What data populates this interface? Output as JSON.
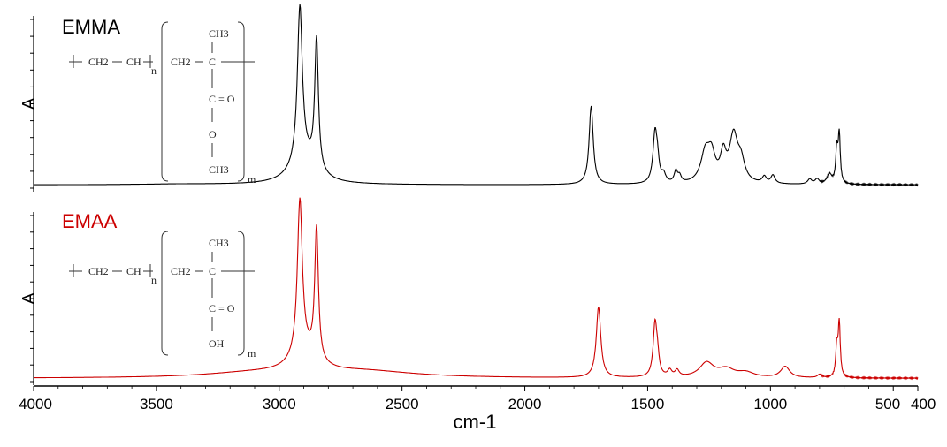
{
  "chart_data": {
    "type": "line",
    "xlabel": "cm-1",
    "ylabel": "A",
    "x_axis": {
      "min": 400,
      "max": 4000,
      "reversed": true,
      "ticks": [
        4000,
        3500,
        3000,
        2500,
        2000,
        1500,
        1000,
        500,
        400
      ],
      "tick_labels": [
        "4000",
        "3500",
        "3000",
        "2500",
        "2000",
        "1500",
        "1000",
        "500",
        "400"
      ]
    },
    "panels": [
      {
        "name": "EMMA",
        "color": "#000000",
        "ylim": [
          0,
          1
        ],
        "baseline": 0.02,
        "peaks": [
          {
            "x": 3400,
            "h": 0.004,
            "w": 200
          },
          {
            "x": 2916,
            "h": 0.95,
            "w": 12
          },
          {
            "x": 2848,
            "h": 0.8,
            "w": 9
          },
          {
            "x": 2900,
            "h": 0.15,
            "w": 60
          },
          {
            "x": 1730,
            "h": 0.48,
            "w": 10
          },
          {
            "x": 1470,
            "h": 0.3,
            "w": 10
          },
          {
            "x": 1460,
            "h": 0.1,
            "w": 8
          },
          {
            "x": 1435,
            "h": 0.05,
            "w": 10
          },
          {
            "x": 1385,
            "h": 0.07,
            "w": 8
          },
          {
            "x": 1370,
            "h": 0.04,
            "w": 8
          },
          {
            "x": 1265,
            "h": 0.18,
            "w": 22
          },
          {
            "x": 1240,
            "h": 0.15,
            "w": 18
          },
          {
            "x": 1192,
            "h": 0.16,
            "w": 14
          },
          {
            "x": 1150,
            "h": 0.28,
            "w": 20
          },
          {
            "x": 1120,
            "h": 0.12,
            "w": 18
          },
          {
            "x": 1025,
            "h": 0.04,
            "w": 10
          },
          {
            "x": 990,
            "h": 0.05,
            "w": 10
          },
          {
            "x": 840,
            "h": 0.03,
            "w": 10
          },
          {
            "x": 810,
            "h": 0.03,
            "w": 10
          },
          {
            "x": 760,
            "h": 0.06,
            "w": 12
          },
          {
            "x": 720,
            "h": 0.3,
            "w": 5
          },
          {
            "x": 730,
            "h": 0.2,
            "w": 5
          }
        ],
        "structure": {
          "top_group": "CH3",
          "chain_left_1": "CH2",
          "chain_left_2": "CH",
          "chain_mid": "CH2",
          "backbone_atom": "C",
          "carbonyl": "C = O",
          "link_atom": "O",
          "bottom_group": "CH3",
          "subscript_n": "n",
          "subscript_m": "m"
        }
      },
      {
        "name": "EMAA",
        "color": "#cc0000",
        "ylim": [
          0,
          1
        ],
        "baseline": 0.02,
        "peaks": [
          {
            "x": 2916,
            "h": 0.96,
            "w": 12
          },
          {
            "x": 2848,
            "h": 0.82,
            "w": 9
          },
          {
            "x": 2900,
            "h": 0.12,
            "w": 60
          },
          {
            "x": 2650,
            "h": 0.04,
            "w": 250
          },
          {
            "x": 3100,
            "h": 0.03,
            "w": 250
          },
          {
            "x": 1700,
            "h": 0.44,
            "w": 11
          },
          {
            "x": 1470,
            "h": 0.32,
            "w": 9
          },
          {
            "x": 1460,
            "h": 0.1,
            "w": 8
          },
          {
            "x": 1410,
            "h": 0.04,
            "w": 10
          },
          {
            "x": 1380,
            "h": 0.04,
            "w": 10
          },
          {
            "x": 1260,
            "h": 0.09,
            "w": 35
          },
          {
            "x": 1180,
            "h": 0.05,
            "w": 40
          },
          {
            "x": 1100,
            "h": 0.03,
            "w": 40
          },
          {
            "x": 940,
            "h": 0.07,
            "w": 22
          },
          {
            "x": 800,
            "h": 0.02,
            "w": 10
          },
          {
            "x": 720,
            "h": 0.34,
            "w": 5
          },
          {
            "x": 730,
            "h": 0.18,
            "w": 5
          }
        ],
        "structure": {
          "top_group": "CH3",
          "chain_left_1": "CH2",
          "chain_left_2": "CH",
          "chain_mid": "CH2",
          "backbone_atom": "C",
          "carbonyl": "C = O",
          "bottom_group": "OH",
          "subscript_n": "n",
          "subscript_m": "m"
        }
      }
    ]
  }
}
